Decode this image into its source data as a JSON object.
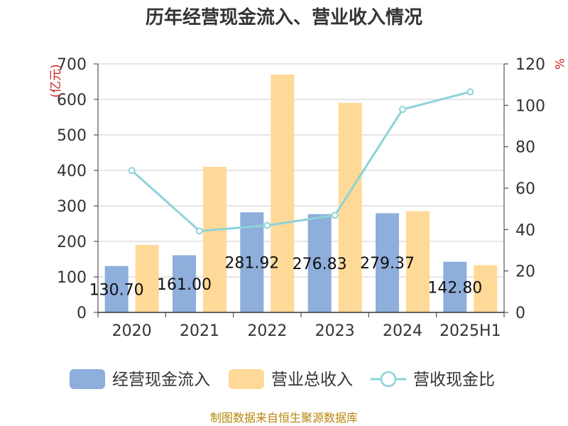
{
  "title": "历年经营现金流入、营业收入情况",
  "source": "制图数据来自恒生聚源数据库",
  "colors": {
    "cash_inflow": "#8eaedb",
    "revenue": "#ffd997",
    "ratio": "#8ed3d8"
  },
  "chart_data": {
    "type": "bar",
    "title": "历年经营现金流入、营业收入情况",
    "categories": [
      "2020",
      "2021",
      "2022",
      "2023",
      "2024",
      "2025H1"
    ],
    "y_left": {
      "unit": "(亿元)",
      "ylim": [
        0,
        700
      ],
      "ticks": [
        0,
        100,
        200,
        300,
        400,
        500,
        600,
        700
      ]
    },
    "y_right": {
      "unit": "%",
      "ylim": [
        0,
        120
      ],
      "ticks": [
        0,
        20,
        40,
        60,
        80,
        100,
        120
      ]
    },
    "series": [
      {
        "name": "经营现金流入",
        "type": "bar",
        "axis": "left",
        "values": [
          130.7,
          161.0,
          281.92,
          276.83,
          279.37,
          142.8
        ],
        "labels": [
          "130.70",
          "161.00",
          "281.92",
          "276.83",
          "279.37",
          "142.80"
        ]
      },
      {
        "name": "营业总收入",
        "type": "bar",
        "axis": "left",
        "values": [
          190,
          410,
          670,
          590,
          285,
          133
        ]
      },
      {
        "name": "营收现金比",
        "type": "line",
        "axis": "right",
        "values": [
          68.5,
          39.3,
          42.0,
          46.9,
          98.0,
          106.5
        ]
      }
    ],
    "grid": true,
    "legend": "bottom"
  }
}
